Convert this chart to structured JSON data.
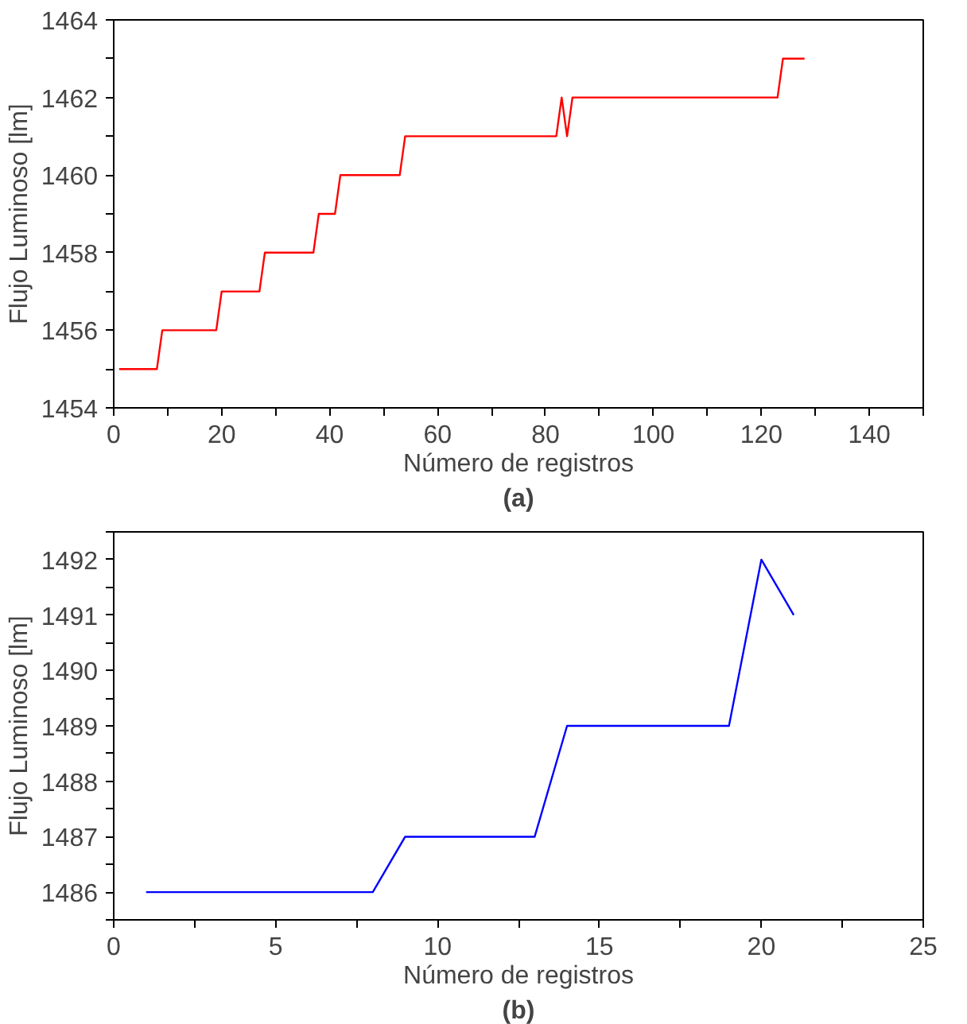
{
  "chart_data": [
    {
      "type": "line",
      "xlabel": "Número de registros",
      "ylabel": "Flujo Luminoso [lm]",
      "annotations": [
        "(a)"
      ],
      "grid": false,
      "marker": "none",
      "line_style": "solid",
      "x": [
        1,
        8,
        9,
        19,
        20,
        27,
        28,
        37,
        38,
        41,
        42,
        53,
        54,
        82,
        83,
        84,
        85,
        123,
        124,
        128
      ],
      "series": [
        {
          "color": "#ff0000",
          "values": [
            1455,
            1455,
            1456,
            1456,
            1457,
            1457,
            1458,
            1458,
            1459,
            1459,
            1460,
            1460,
            1461,
            1461,
            1462,
            1461,
            1462,
            1462,
            1463,
            1463
          ]
        }
      ],
      "xlim": [
        0,
        150
      ],
      "xticks": [
        0,
        {
          "value": 10,
          "label": null
        },
        20,
        {
          "value": 30,
          "label": null
        },
        40,
        {
          "value": 50,
          "label": null
        },
        60,
        {
          "value": 70,
          "label": null
        },
        80,
        {
          "value": 90,
          "label": null
        },
        100,
        {
          "value": 110,
          "label": null
        },
        120,
        {
          "value": 130,
          "label": null
        },
        140,
        {
          "value": 150,
          "label": null
        }
      ],
      "ylim": [
        1454,
        1464
      ],
      "yticks": [
        1454,
        {
          "value": 1455,
          "label": null
        },
        1456,
        {
          "value": 1457,
          "label": null
        },
        1458,
        {
          "value": 1459,
          "label": null
        },
        1460,
        {
          "value": 1461,
          "label": null
        },
        1462,
        {
          "value": 1463,
          "label": null
        },
        1464
      ]
    },
    {
      "type": "line",
      "xlabel": "Número de registros",
      "ylabel": "Flujo Luminoso [lm]",
      "annotations": [
        "(b)"
      ],
      "grid": false,
      "marker": "none",
      "line_style": "solid",
      "x": [
        1,
        2,
        3,
        4,
        5,
        6,
        7,
        8,
        9,
        10,
        11,
        12,
        13,
        14,
        15,
        16,
        17,
        18,
        19,
        20,
        21
      ],
      "series": [
        {
          "color": "#0000ff",
          "values": [
            1486,
            1486,
            1486,
            1486,
            1486,
            1486,
            1486,
            1486,
            1487,
            1487,
            1487,
            1487,
            1487,
            1489,
            1489,
            1489,
            1489,
            1489,
            1489,
            1492,
            1491
          ]
        }
      ],
      "xlim": [
        0,
        25
      ],
      "xticks": [
        0,
        {
          "value": 2.5,
          "label": null
        },
        5,
        {
          "value": 7.5,
          "label": null
        },
        10,
        {
          "value": 12.5,
          "label": null
        },
        15,
        {
          "value": 17.5,
          "label": null
        },
        20,
        {
          "value": 22.5,
          "label": null
        },
        25
      ],
      "ylim": [
        1485.5,
        1492.5
      ],
      "yticks": [
        {
          "value": 1485.5,
          "label": null
        },
        1486,
        {
          "value": 1486.5,
          "label": null
        },
        1487,
        {
          "value": 1487.5,
          "label": null
        },
        1488,
        {
          "value": 1488.5,
          "label": null
        },
        1489,
        {
          "value": 1489.5,
          "label": null
        },
        1490,
        {
          "value": 1490.5,
          "label": null
        },
        1491,
        {
          "value": 1491.5,
          "label": null
        },
        1492,
        {
          "value": 1492.5,
          "label": null
        }
      ]
    }
  ]
}
